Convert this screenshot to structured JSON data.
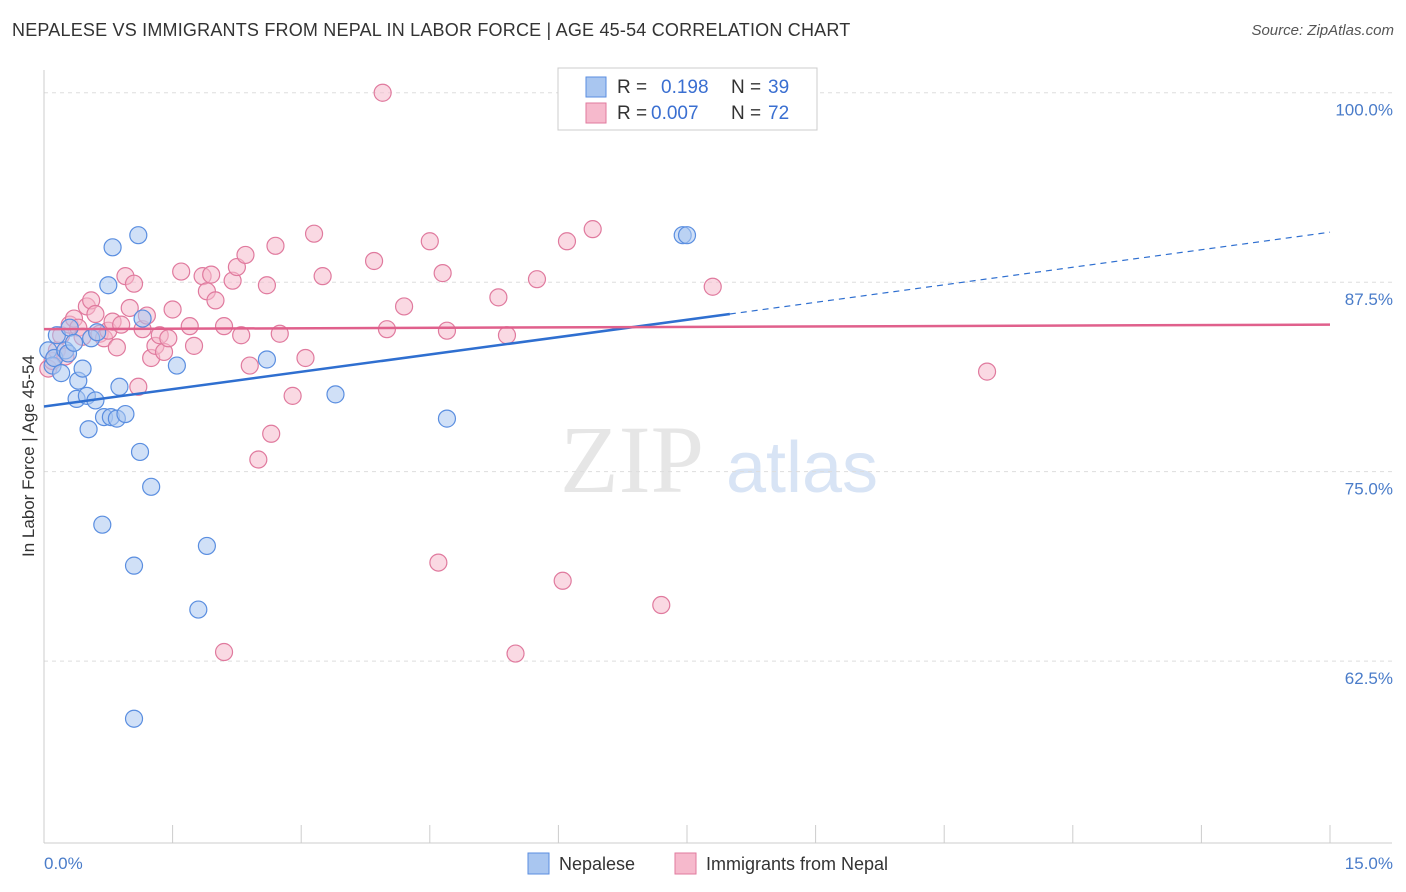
{
  "title": "NEPALESE VS IMMIGRANTS FROM NEPAL IN LABOR FORCE | AGE 45-54 CORRELATION CHART",
  "source": "Source: ZipAtlas.com",
  "watermark": {
    "zip": "ZIP",
    "atlas": "atlas"
  },
  "colors": {
    "nepalese_fill": "#a9c6f0",
    "nepalese_stroke": "#5a8ee0",
    "nepalese_line": "#2f6fd0",
    "nepal_fill": "#f6b9cc",
    "nepal_stroke": "#e07a9e",
    "nepal_line": "#e0608c",
    "tick_label": "#4a7cc9",
    "grid": "#dddddd"
  },
  "legend": {
    "row1": {
      "r_label": "R =",
      "r_value": "0.198",
      "n_label": "N =",
      "n_value": "39"
    },
    "row2": {
      "r_label": "R =",
      "r_value": "0.007",
      "n_label": "N =",
      "n_value": "72"
    }
  },
  "chart_data": {
    "type": "scatter",
    "title": "NEPALESE VS IMMIGRANTS FROM NEPAL IN LABOR FORCE | AGE 45-54 CORRELATION CHART",
    "xlabel": "",
    "ylabel": "In Labor Force | Age 45-54",
    "xlim": [
      0,
      15
    ],
    "ylim": [
      50.5,
      101.5
    ],
    "x_tick_labels": [
      {
        "value": 0,
        "label": "0.0%"
      },
      {
        "value": 15,
        "label": "15.0%"
      }
    ],
    "y_ticks": [
      {
        "value": 100,
        "label": "100.0%"
      },
      {
        "value": 87.5,
        "label": "87.5%"
      },
      {
        "value": 75,
        "label": "75.0%"
      },
      {
        "value": 62.5,
        "label": "62.5%"
      }
    ],
    "grid": true,
    "legend_placement": "top-center",
    "series": [
      {
        "name": "Nepalese",
        "r": 0.198,
        "n": 39,
        "trend": {
          "x": [
            0,
            8.0
          ],
          "y": [
            79.3,
            85.4
          ],
          "dashed_to": [
            15.0,
            90.8
          ]
        },
        "points": [
          [
            0.05,
            83.0
          ],
          [
            0.1,
            82.0
          ],
          [
            0.12,
            82.5
          ],
          [
            0.15,
            84.0
          ],
          [
            0.2,
            81.5
          ],
          [
            0.25,
            83.0
          ],
          [
            0.28,
            82.8
          ],
          [
            0.3,
            84.5
          ],
          [
            0.35,
            83.5
          ],
          [
            0.38,
            79.8
          ],
          [
            0.4,
            81.0
          ],
          [
            0.45,
            81.8
          ],
          [
            0.5,
            80.0
          ],
          [
            0.52,
            77.8
          ],
          [
            0.55,
            83.8
          ],
          [
            0.6,
            79.7
          ],
          [
            0.62,
            84.2
          ],
          [
            0.68,
            71.5
          ],
          [
            0.7,
            78.6
          ],
          [
            0.75,
            87.3
          ],
          [
            0.78,
            78.6
          ],
          [
            0.8,
            89.8
          ],
          [
            0.85,
            78.5
          ],
          [
            0.88,
            80.6
          ],
          [
            0.95,
            78.8
          ],
          [
            1.05,
            68.8
          ],
          [
            1.1,
            90.6
          ],
          [
            1.12,
            76.3
          ],
          [
            1.15,
            85.1
          ],
          [
            1.25,
            74.0
          ],
          [
            1.05,
            58.7
          ],
          [
            1.55,
            82.0
          ],
          [
            1.8,
            65.9
          ],
          [
            1.9,
            70.1
          ],
          [
            2.6,
            82.4
          ],
          [
            3.4,
            80.1
          ],
          [
            4.7,
            78.5
          ],
          [
            7.45,
            90.6
          ],
          [
            7.5,
            90.6
          ]
        ]
      },
      {
        "name": "Immigrants from Nepal",
        "r": 0.007,
        "n": 72,
        "trend": {
          "x": [
            0,
            15.0
          ],
          "y": [
            84.4,
            84.7
          ]
        },
        "points": [
          [
            0.05,
            81.8
          ],
          [
            0.1,
            82.3
          ],
          [
            0.15,
            83.0
          ],
          [
            0.2,
            84.0
          ],
          [
            0.25,
            82.6
          ],
          [
            0.3,
            84.7
          ],
          [
            0.35,
            85.1
          ],
          [
            0.4,
            84.5
          ],
          [
            0.45,
            83.9
          ],
          [
            0.5,
            85.9
          ],
          [
            0.55,
            86.3
          ],
          [
            0.6,
            85.4
          ],
          [
            0.65,
            84.1
          ],
          [
            0.7,
            83.8
          ],
          [
            0.75,
            84.3
          ],
          [
            0.8,
            84.9
          ],
          [
            0.85,
            83.2
          ],
          [
            0.9,
            84.7
          ],
          [
            0.95,
            87.9
          ],
          [
            1.0,
            85.8
          ],
          [
            1.05,
            87.4
          ],
          [
            1.1,
            80.6
          ],
          [
            1.15,
            84.4
          ],
          [
            1.2,
            85.3
          ],
          [
            1.25,
            82.5
          ],
          [
            1.3,
            83.3
          ],
          [
            1.35,
            84.0
          ],
          [
            1.4,
            82.9
          ],
          [
            1.45,
            83.8
          ],
          [
            1.5,
            85.7
          ],
          [
            1.6,
            88.2
          ],
          [
            1.7,
            84.6
          ],
          [
            1.75,
            83.3
          ],
          [
            1.85,
            87.9
          ],
          [
            1.9,
            86.9
          ],
          [
            1.95,
            88.0
          ],
          [
            2.0,
            86.3
          ],
          [
            2.1,
            84.6
          ],
          [
            2.2,
            87.6
          ],
          [
            2.25,
            88.5
          ],
          [
            2.3,
            84.0
          ],
          [
            2.35,
            89.3
          ],
          [
            2.4,
            82.0
          ],
          [
            2.5,
            75.8
          ],
          [
            2.6,
            87.3
          ],
          [
            2.65,
            77.5
          ],
          [
            2.7,
            89.9
          ],
          [
            2.75,
            84.1
          ],
          [
            2.9,
            80.0
          ],
          [
            3.05,
            82.5
          ],
          [
            3.15,
            90.7
          ],
          [
            3.25,
            87.9
          ],
          [
            2.1,
            63.1
          ],
          [
            3.85,
            88.9
          ],
          [
            3.95,
            100.0
          ],
          [
            4.0,
            84.4
          ],
          [
            4.2,
            85.9
          ],
          [
            4.5,
            90.2
          ],
          [
            4.6,
            69.0
          ],
          [
            4.65,
            88.1
          ],
          [
            4.7,
            84.3
          ],
          [
            5.3,
            86.5
          ],
          [
            5.4,
            84.0
          ],
          [
            5.5,
            63.0
          ],
          [
            5.75,
            87.7
          ],
          [
            6.05,
            67.8
          ],
          [
            6.1,
            90.2
          ],
          [
            6.4,
            91.0
          ],
          [
            6.7,
            100.0
          ],
          [
            7.2,
            66.2
          ],
          [
            7.8,
            87.2
          ],
          [
            11.0,
            81.6
          ]
        ]
      }
    ]
  }
}
